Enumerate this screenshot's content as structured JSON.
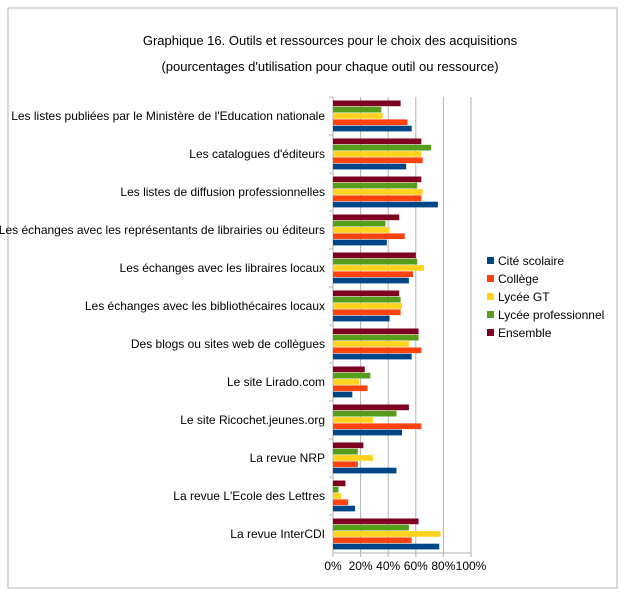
{
  "chart_data": {
    "type": "bar",
    "orientation": "horizontal",
    "title": "Graphique 16. Outils et ressources pour le choix des acquisitions",
    "subtitle": "(pourcentages d'utilisation pour chaque outil ou ressource)",
    "categories": [
      "Les listes publiées par le Ministère de l'Education nationale",
      "Les catalogues d'éditeurs",
      "Les listes de diffusion professionnelles",
      "Les échanges avec les représentants de librairies ou éditeurs",
      "Les échanges avec les libraires locaux",
      "Les échanges avec les bibliothécaires locaux",
      "Des blogs ou sites web de collègues",
      "Le site Lirado.com",
      "Le site Ricochet.jeunes.org",
      "La revue NRP",
      "La revue L'Ecole des Lettres",
      "La revue InterCDI"
    ],
    "series": [
      {
        "name": "Cité scolaire",
        "color": "#004586",
        "values": [
          57,
          53,
          76,
          39,
          55,
          41,
          57,
          14,
          50,
          46,
          16,
          77
        ]
      },
      {
        "name": "Collège",
        "color": "#ff420e",
        "values": [
          54,
          65,
          64,
          52,
          58,
          49,
          64,
          25,
          64,
          18,
          11,
          57
        ]
      },
      {
        "name": "Lycée GT",
        "color": "#ffd320",
        "values": [
          36,
          64,
          65,
          41,
          66,
          50,
          55,
          19,
          29,
          29,
          6,
          78
        ]
      },
      {
        "name": "Lycée professionnel",
        "color": "#579d1c",
        "values": [
          35,
          71,
          61,
          38,
          61,
          49,
          62,
          27,
          46,
          18,
          4,
          55
        ]
      },
      {
        "name": "Ensemble",
        "color": "#7e0021",
        "values": [
          49,
          64,
          64,
          48,
          60,
          48,
          62,
          23,
          55,
          22,
          9,
          62
        ]
      }
    ],
    "xlim": [
      0,
      100
    ],
    "xticks": [
      "0%",
      "20%",
      "40%",
      "60%",
      "80%",
      "100%"
    ],
    "grid": true,
    "legend": "right"
  }
}
